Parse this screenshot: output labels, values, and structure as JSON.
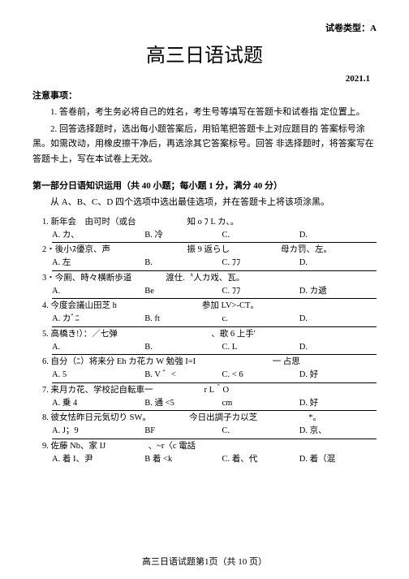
{
  "header": {
    "paper_type": "试卷类型：A",
    "title": "高三日语试题",
    "date": "2021.1"
  },
  "notice": {
    "heading": "注意事项：",
    "p1": "1. 答卷前，考生务必将自己的姓名，考生号等填写在答题卡和试卷指 定位置上。",
    "p2": "2. 回答选择题时，选出每小题答案后，用铅笔把答题卡上对应题目的 答案标号涂黑。如需改动，用橡皮擦干净后，再选涂其它答案标号。回答 非选择题时，将答案写在答题卡上，写在本试卷上无效。"
  },
  "part1": {
    "title": "第一部分日语知识运用（共 40 小题；每小题 1 分，满分 40 分）",
    "instr": "从 A、B、C、D 四个选项中选出最佳选项，并在答题卡上将该项涂黑。"
  },
  "questions": [
    {
      "q": "1. 新年会　由可时（或台　　　　　　知 o ﾌ L カ、。",
      "opts": [
        "A. カ、",
        "B. 冷",
        "C.",
        "D."
      ]
    },
    {
      "q": "2・後小ｽ優京、声　　　　　　　　　振 9 返らし　　　　　　母カ罚、左。",
      "opts": [
        "A. 左",
        "B.",
        "C. ﾌﾌ",
        "D."
      ]
    },
    {
      "q": "3・今厠、時々横断歩道　　　　渡仕.〝人カ戏、瓦。",
      "opts": [
        "A.",
        "Be",
        "C. ﾌﾌ",
        "D. カ遞"
      ]
    },
    {
      "q": "4. 今度会議山田芝 h　　　　　　　　　　参加 LV>-CT。　　　",
      "opts": [
        "A. カﾞﾆ",
        "B. ft",
        "c.",
        "D."
      ]
    },
    {
      "q": "5. 高橋き!）：／七弹　　　　　　　　　　　、歌 6 上手'",
      "opts": [
        "A.",
        "B.",
        "C. L",
        "D."
      ]
    },
    {
      "q": "6. 自分（ﾆ）将来分 Eh カ花カ W 勉強 I=I　　　　　　　　　一 占思",
      "opts": [
        "A. 5",
        "B. V ゛<",
        "C. < 6",
        "D. 好"
      ]
    },
    {
      "q": "7. 来月カ花、学校記自転車一　　　　　　r L＾O",
      "opts": [
        "A. 乗 4",
        "B. 通 <5",
        "cm",
        "D. 好"
      ]
    },
    {
      "q": "8. 彼女怯昨日元気切り SW。　　　　　今日出調子カ以芝　　　　　　*。",
      "opts": [
        "A. J；9",
        "BF",
        "C.",
        "D. 京、"
      ]
    },
    {
      "q": "9. 佐藤 Nb、家 IJ　　　　　、~r〈c 電話",
      "opts": [
        "A. 着 I、尹",
        "B 着 <k",
        "C. 着、代",
        "D. 着（混"
      ]
    }
  ],
  "footer": "高三日语试题第1页（共 10 页）"
}
